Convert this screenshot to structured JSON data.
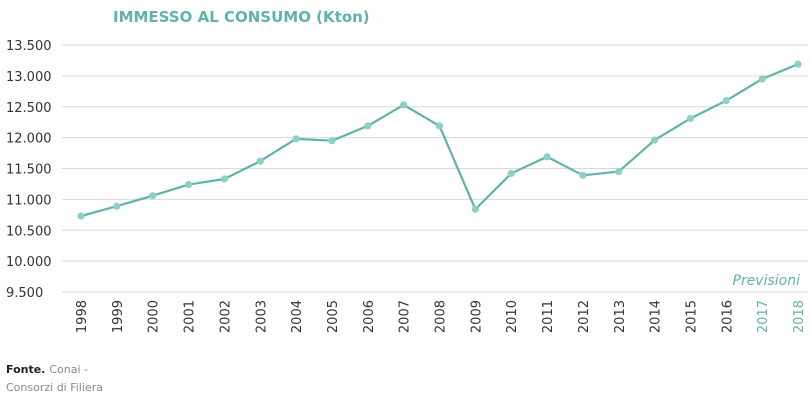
{
  "source": {
    "label": "Fonte.",
    "text": "Conai - Consorzi di Filiera"
  },
  "colors": {
    "line": "#5fb3a8",
    "marker": "#8fd0c6",
    "title": "#5fb3a8",
    "forecast": "#5fb3a8",
    "axis_text": "#333333",
    "grid": "#d9d9d9"
  },
  "chart_data": {
    "type": "line",
    "title": "IMMESSO AL CONSUMO (Kton)",
    "annotation": "Previsioni",
    "categories": [
      "1998",
      "1999",
      "2000",
      "2001",
      "2002",
      "2003",
      "2004",
      "2005",
      "2006",
      "2007",
      "2008",
      "2009",
      "2010",
      "2011",
      "2012",
      "2013",
      "2014",
      "2015",
      "2016",
      "2017",
      "2018"
    ],
    "forecast_categories": [
      "2017",
      "2018"
    ],
    "series": [
      {
        "values": [
          10730,
          10890,
          11060,
          11240,
          11330,
          11620,
          11980,
          11950,
          12190,
          12530,
          12190,
          10840,
          11420,
          11690,
          11390,
          11450,
          11960,
          12310,
          12600,
          12950,
          13190
        ]
      }
    ],
    "yticks": [
      9500,
      10000,
      10500,
      11000,
      11500,
      12000,
      12500,
      13000,
      13500
    ],
    "ytick_labels": [
      "9.500",
      "10.000",
      "10.500",
      "11.000",
      "11.500",
      "12.000",
      "12.500",
      "13.000",
      "13.500"
    ],
    "ylim": [
      9500,
      13500
    ],
    "grid": true
  }
}
